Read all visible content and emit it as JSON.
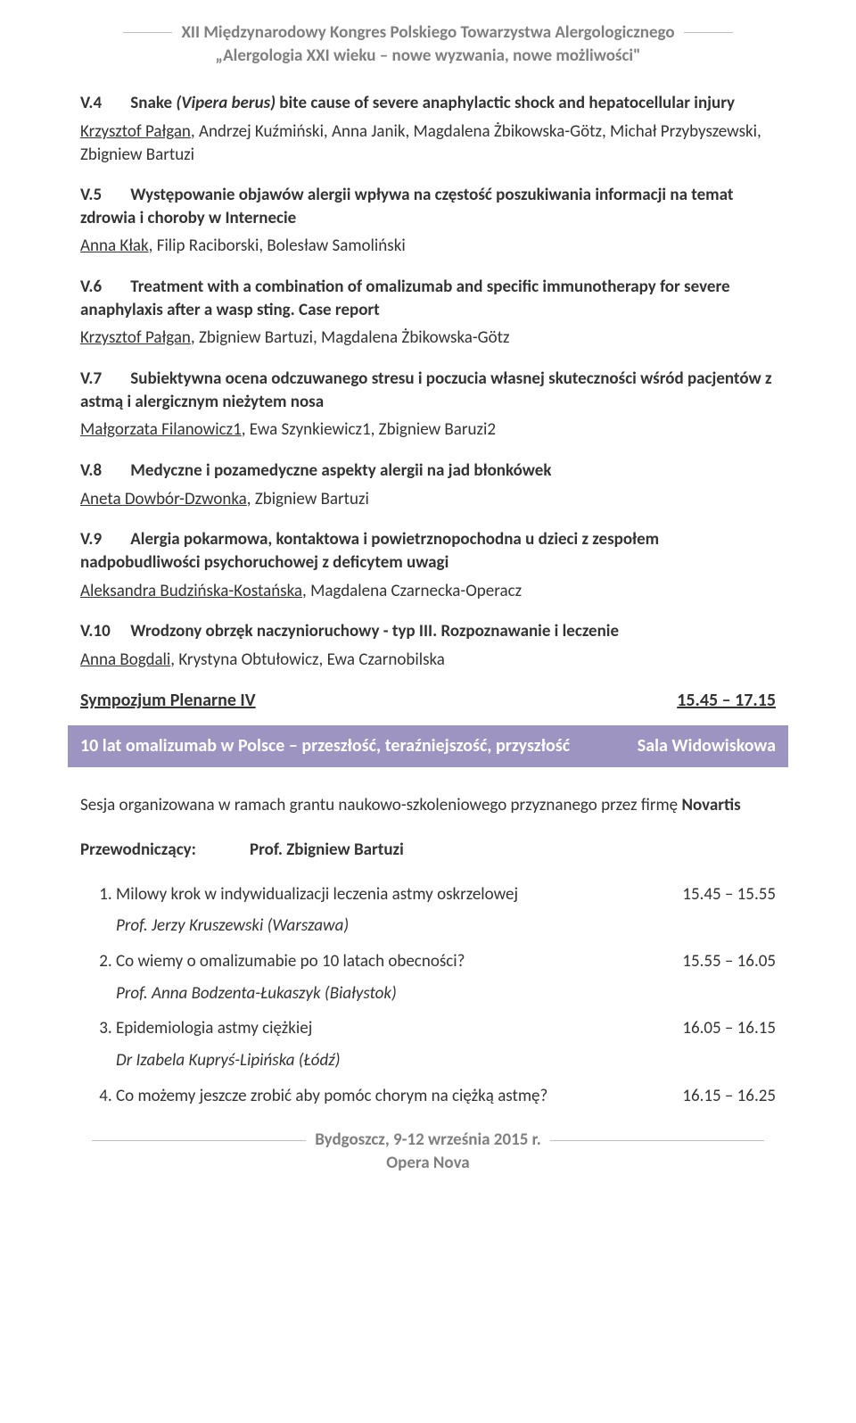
{
  "header": {
    "title": "XII Międzynarodowy Kongres Polskiego Towarzystwa Alergologicznego",
    "subtitle": "„Alergologia XXI wieku – nowe wyzwania, nowe możliwości\""
  },
  "abstracts": [
    {
      "code": "V.4",
      "title": "Snake (Vipera berus) bite cause of severe anaphylactic shock and hepatocellular injury",
      "authors_underlined": "Krzysztof Pałgan",
      "authors_rest": ", Andrzej Kuźmiński, Anna Janik, Magdalena Żbikowska-Götz, Michał Przybyszewski, Zbigniew Bartuzi",
      "italic_title_part": "(Vipera berus)"
    },
    {
      "code": "V.5",
      "title": "Występowanie objawów alergii wpływa na częstość poszukiwania informacji na temat zdrowia i choroby w Internecie",
      "authors_underlined": "Anna Kłak",
      "authors_rest": ", Filip Raciborski, Bolesław Samoliński"
    },
    {
      "code": "V.6",
      "title": "Treatment with a combination of omalizumab and specific immunotherapy for severe anaphylaxis after a wasp sting. Case report",
      "authors_underlined": "Krzysztof Pałgan",
      "authors_rest": ", Zbigniew Bartuzi, Magdalena Żbikowska-Götz"
    },
    {
      "code": "V.7",
      "title": "Subiektywna ocena odczuwanego stresu i poczucia własnej skuteczności wśród pacjentów z astmą i alergicznym nieżytem nosa",
      "authors_underlined": "Małgorzata Filanowicz1",
      "authors_rest": ", Ewa Szynkiewicz1, Zbigniew Baruzi2"
    },
    {
      "code": "V.8",
      "title": "Medyczne i pozamedyczne aspekty alergii na jad błonkówek",
      "authors_underlined": "Aneta Dowbór-Dzwonka",
      "authors_rest": ", Zbigniew Bartuzi"
    },
    {
      "code": "V.9",
      "title": "Alergia pokarmowa, kontaktowa i powietrznopochodna u dzieci z zespołem nadpobudliwości psychoruchowej z deficytem uwagi",
      "authors_underlined": "Aleksandra Budzińska-Kostańska",
      "authors_rest": ", Magdalena Czarnecka-Operacz"
    },
    {
      "code": "V.10",
      "title": "Wrodzony obrzęk naczynioruchowy - typ III. Rozpoznawanie i leczenie",
      "authors_underlined": "Anna Bogdali",
      "authors_rest": ", Krystyna Obtułowicz, Ewa Czarnobilska"
    }
  ],
  "session_row": {
    "name": "Sympozjum Plenarne IV",
    "time": "15.45 – 17.15"
  },
  "session_bar": {
    "title": "10 lat omalizumab w Polsce – przeszłość, teraźniejszość, przyszłość",
    "room": "Sala Widowiskowa",
    "bg_color": "#9e94c1",
    "fg_color": "#ffffff"
  },
  "session_note_prefix": "Sesja organizowana w ramach grantu naukowo-szkoleniowego przyznanego przez firmę ",
  "session_note_bold": "Novartis",
  "chair": {
    "label": "Przewodniczący:",
    "name": "Prof. Zbigniew Bartuzi"
  },
  "talks": [
    {
      "title": "Milowy krok w indywidualizacji leczenia astmy oskrzelowej",
      "time": "15.45 – 15.55",
      "speaker": "Prof. Jerzy Kruszewski (Warszawa)"
    },
    {
      "title": "Co wiemy o omalizumabie po 10 latach obecności?",
      "time": "15.55 – 16.05",
      "speaker": "Prof. Anna Bodzenta-Łukaszyk (Białystok)"
    },
    {
      "title": "Epidemiologia astmy ciężkiej",
      "time": "16.05 – 16.15",
      "speaker": "Dr Izabela Kupryś-Lipińska (Łódź)"
    },
    {
      "title": "Co możemy jeszcze zrobić aby pomóc chorym na ciężką astmę?",
      "time": "16.15 – 16.25",
      "speaker": ""
    }
  ],
  "footer": {
    "line1": "Bydgoszcz, 9-12 września 2015 r.",
    "line2": "Opera Nova"
  },
  "colors": {
    "header_text": "#7f7f7f",
    "body_text": "#333333",
    "bar_bg": "#9e94c1",
    "bar_fg": "#ffffff",
    "rule": "#bfbfbf",
    "page_bg": "#ffffff"
  },
  "typography": {
    "body_font": "Calibri / Segoe UI",
    "body_size_pt": 11,
    "header_bold": true
  }
}
